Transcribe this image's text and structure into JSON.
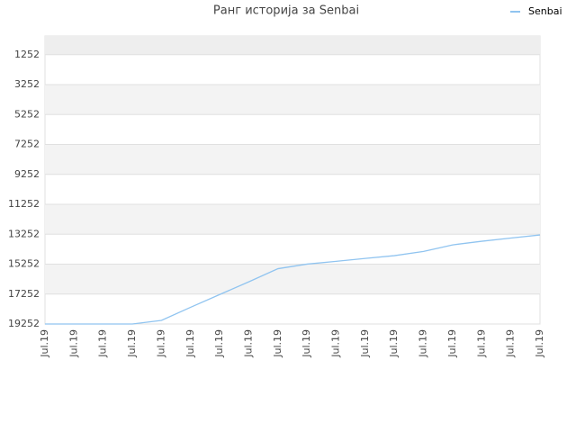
{
  "chart_data": {
    "type": "line",
    "title": "Ранг историја за Senbai",
    "categories": [
      "Jul.19",
      "Jul.19",
      "Jul.19",
      "Jul.19",
      "Jul.19",
      "Jul.19",
      "Jul.19",
      "Jul.19",
      "Jul.19",
      "Jul.19",
      "Jul.19",
      "Jul.19",
      "Jul.19",
      "Jul.19",
      "Jul.19",
      "Jul.19",
      "Jul.19",
      "Jul.19"
    ],
    "series": [
      {
        "name": "Senbai",
        "color": "#90c4f0",
        "values": [
          19252,
          19252,
          19252,
          19252,
          19013,
          18135,
          17283,
          16432,
          15555,
          15248,
          15062,
          14870,
          14684,
          14404,
          13963,
          13720,
          13506,
          13300
        ]
      }
    ],
    "ylim": [
      19252,
      0
    ],
    "yticks": [
      1252,
      3252,
      5252,
      7252,
      9252,
      11252,
      13252,
      15252,
      17252,
      19252
    ],
    "grid": true,
    "legend": "top-right"
  }
}
